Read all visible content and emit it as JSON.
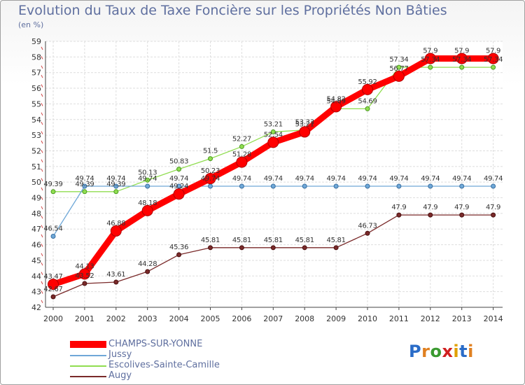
{
  "title": "Evolution du Taux de Taxe Foncière sur les Propriétés Non Bâties",
  "subtitle": "(en %)",
  "logo": {
    "text": "Proxiti",
    "letters": [
      "P",
      "r",
      "o",
      "x",
      "i",
      "t",
      "i"
    ]
  },
  "chart_data": {
    "type": "line",
    "title": "Evolution du Taux de Taxe Foncière sur les Propriétés Non Bâties",
    "ylabel": "(en %)",
    "xlabel": "",
    "ylim": [
      42,
      59
    ],
    "grid": true,
    "categories": [
      "2000",
      "2001",
      "2002",
      "2003",
      "2004",
      "2005",
      "2006",
      "2007",
      "2008",
      "2009",
      "2010",
      "2011",
      "2012",
      "2013",
      "2014"
    ],
    "y_ticks": [
      42,
      43,
      44,
      45,
      46,
      47,
      48,
      49,
      50,
      51,
      52,
      53,
      54,
      55,
      56,
      57,
      58,
      59
    ],
    "series": [
      {
        "name": "CHAMPS-SUR-YONNE",
        "color": "#ff0000",
        "values": [
          43.47,
          44.13,
          46.88,
          48.18,
          49.24,
          50.23,
          51.28,
          52.54,
          53.21,
          54.82,
          55.92,
          56.77,
          57.9,
          57.9,
          57.9
        ],
        "labels": [
          "43.47",
          "44.13",
          "46.88",
          "48.18",
          "49.24",
          "50.23",
          "51.28",
          "52.54",
          "53.21",
          "54.82",
          "55.92",
          "56.77",
          "57.9",
          "57.9",
          "57.9"
        ]
      },
      {
        "name": "Jussy",
        "color": "#6fa8d8",
        "values": [
          46.54,
          49.74,
          49.74,
          49.74,
          49.74,
          49.74,
          49.74,
          49.74,
          49.74,
          49.74,
          49.74,
          49.74,
          49.74,
          49.74,
          49.74
        ],
        "labels": [
          "46.54",
          "49.74",
          "49.74",
          "49.74",
          "49.74",
          "49.74",
          "49.74",
          "49.74",
          "49.74",
          "49.74",
          "49.74",
          "49.74",
          "49.74",
          "49.74",
          "49.74"
        ]
      },
      {
        "name": "Escolives-Sainte-Camille",
        "color": "#90dd50",
        "values": [
          49.39,
          49.39,
          49.39,
          50.13,
          50.83,
          51.5,
          52.27,
          53.21,
          53.33,
          54.69,
          54.69,
          57.34,
          57.34,
          57.34,
          57.34
        ],
        "labels": [
          "49.39",
          "49.39",
          "49.39",
          "50.13",
          "50.83",
          "51.5",
          "52.27",
          "53.21",
          "53.33",
          "54.69",
          "54.69",
          "57.34",
          "57.34",
          "57.34",
          "57.34"
        ]
      },
      {
        "name": "Augy",
        "color": "#7a2a2a",
        "values": [
          42.67,
          43.52,
          43.61,
          44.28,
          45.36,
          45.81,
          45.81,
          45.81,
          45.81,
          45.81,
          46.73,
          47.9,
          47.9,
          47.9,
          47.9
        ],
        "labels": [
          "42.67",
          "43.52",
          "43.61",
          "44.28",
          "45.36",
          "45.81",
          "45.81",
          "45.81",
          "45.81",
          "45.81",
          "46.73",
          "47.9",
          "47.9",
          "47.9",
          "47.9"
        ]
      }
    ]
  }
}
